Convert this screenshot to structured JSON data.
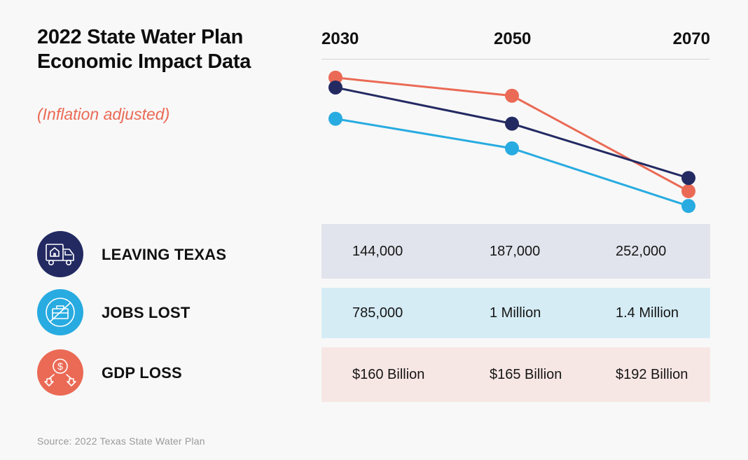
{
  "title": "2022 State Water Plan Economic Impact Data",
  "subtitle": "(Inflation adjusted)",
  "years": [
    "2030",
    "2050",
    "2070"
  ],
  "rows": [
    {
      "label": "LEAVING TEXAS",
      "icon": "moving-truck-house-icon",
      "color": "#232a62",
      "bg": "#e1e4ec",
      "values": [
        "144,000",
        "187,000",
        "252,000"
      ]
    },
    {
      "label": "JOBS LOST",
      "icon": "no-briefcase-icon",
      "color": "#28abe0",
      "bg": "#d5ecf5",
      "values": [
        "785,000",
        "1 Million",
        "1.4 Million"
      ]
    },
    {
      "label": "GDP LOSS",
      "icon": "dollar-down-arrows-icon",
      "color": "#ea6a55",
      "bg": "#f7e7e4",
      "values": [
        "$160 Billion",
        "$165 Billion",
        "$192 Billion"
      ]
    }
  ],
  "source": "Source: 2022 Texas State Water Plan",
  "chart_data": {
    "type": "line",
    "title": "2022 State Water Plan Economic Impact Data",
    "subtitle": "(Inflation adjusted)",
    "x": [
      "2030",
      "2050",
      "2070"
    ],
    "xlabel": "",
    "ylabel": "",
    "ylim": [
      0,
      1
    ],
    "grid": false,
    "legend": "none (rows below act as legend)",
    "note": "Decorative trend lines without a y-axis scale; values are relative heights (0 = bottom, 1 = top of plot area)",
    "series": [
      {
        "name": "LEAVING TEXAS",
        "color": "#232a62",
        "values": [
          0.83,
          0.61,
          0.28
        ]
      },
      {
        "name": "GDP LOSS",
        "color": "#ea6a55",
        "values": [
          0.89,
          0.78,
          0.2
        ]
      },
      {
        "name": "JOBS LOST",
        "color": "#28abe0",
        "values": [
          0.64,
          0.46,
          0.11
        ]
      }
    ]
  }
}
